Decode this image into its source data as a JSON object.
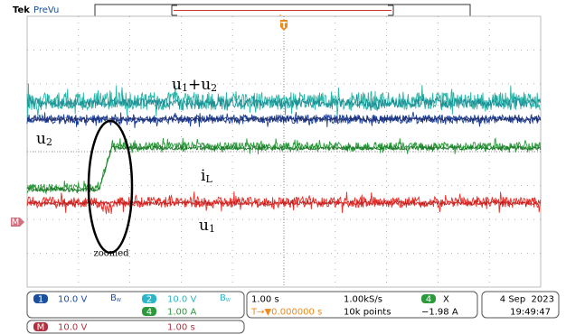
{
  "header": {
    "brand": "Tek",
    "mode": "PreVu",
    "trigger_marker": "T"
  },
  "annotations": {
    "sum": [
      "u",
      "1",
      "+u",
      "2"
    ],
    "u2": [
      "u",
      "2"
    ],
    "iL": [
      "i",
      "L"
    ],
    "u1": [
      "u",
      "1"
    ],
    "zoomed": "zoomed",
    "ref_marker": "M"
  },
  "channels": {
    "ch1": {
      "badge": "1",
      "scale": "10.0 V",
      "bw": "B",
      "bw_sub": "W"
    },
    "ch2": {
      "badge": "2",
      "scale": "10.0 V",
      "bw": "B",
      "bw_sub": "W"
    },
    "ch4": {
      "badge": "4",
      "scale": "1.00 A"
    },
    "math": {
      "badge": "M",
      "scale": "10.0 V",
      "time": "1.00 s"
    }
  },
  "timebase": {
    "scale": "1.00 s",
    "rate": "1.00kS/s",
    "trigger_pos": "T→▼0.000000 s",
    "points": "10k points",
    "cursor_badge": "4",
    "cursor_symbol": "X",
    "cursor_value": "−1.98 A"
  },
  "clock": {
    "date": "4 Sep  2023",
    "time": "19:49:47"
  }
}
